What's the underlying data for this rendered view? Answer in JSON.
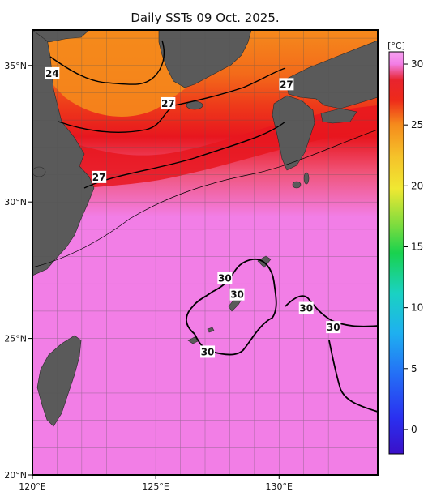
{
  "title": "Daily SSTs 09 Oct. 2025.",
  "x_ticks": [
    {
      "lon": 120,
      "label": "120°E"
    },
    {
      "lon": 125,
      "label": "125°E"
    },
    {
      "lon": 130,
      "label": "130°E"
    }
  ],
  "y_ticks": [
    {
      "lat": 35,
      "label": "35°N"
    },
    {
      "lat": 30,
      "label": "30°N"
    },
    {
      "lat": 25,
      "label": "25°N"
    },
    {
      "lat": 20,
      "label": "20°N"
    }
  ],
  "extent": {
    "lon_min": 120,
    "lon_max": 134,
    "lat_min": 20,
    "lat_max": 36.3
  },
  "contour_labels": [
    {
      "text": "24",
      "lon": 120.8,
      "lat": 34.7
    },
    {
      "text": "27",
      "lon": 125.5,
      "lat": 33.6
    },
    {
      "text": "27",
      "lon": 130.3,
      "lat": 34.3
    },
    {
      "text": "27",
      "lon": 122.7,
      "lat": 30.9
    },
    {
      "text": "30",
      "lon": 127.8,
      "lat": 27.2
    },
    {
      "text": "30",
      "lon": 128.3,
      "lat": 26.6
    },
    {
      "text": "30",
      "lon": 131.1,
      "lat": 26.1
    },
    {
      "text": "30",
      "lon": 132.2,
      "lat": 25.4
    },
    {
      "text": "30",
      "lon": 127.1,
      "lat": 24.5
    }
  ],
  "colorbar": {
    "unit": "[°C]",
    "min": -2,
    "max": 31,
    "ticks": [
      {
        "value": 30,
        "label": "30"
      },
      {
        "value": 25,
        "label": "25"
      },
      {
        "value": 20,
        "label": "20"
      },
      {
        "value": 15,
        "label": "15"
      },
      {
        "value": 10,
        "label": "10"
      },
      {
        "value": 5,
        "label": "5"
      },
      {
        "value": 0,
        "label": "0"
      }
    ]
  },
  "colors": {
    "land": "#5a5a5a",
    "warm_pink": "#f27ee6",
    "red": "#e8161e",
    "orange_red": "#f14c18",
    "orange": "#f58a1c",
    "contour": "#000000"
  }
}
